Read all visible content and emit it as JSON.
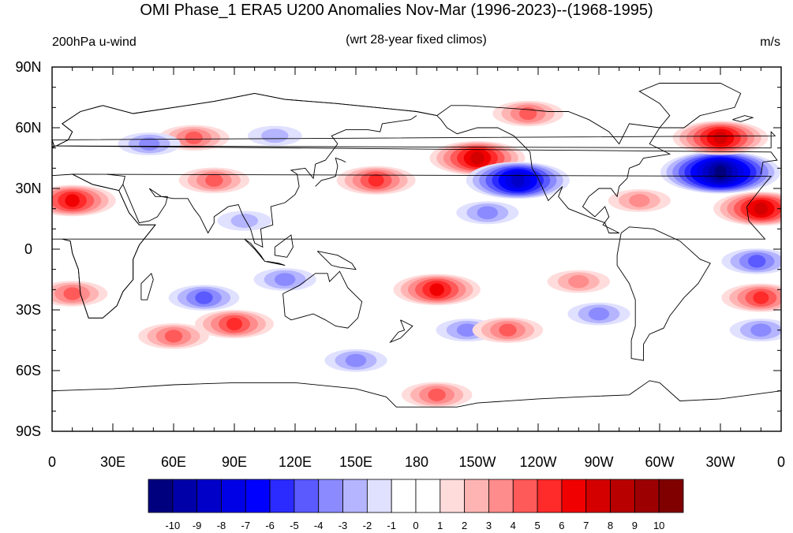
{
  "header": {
    "title": "OMI Phase_1 ERA5 U200 Anomalies Nov-Mar (1996-2023)--(1968-1995)",
    "left_label": "200hPa u-wind",
    "center_label": "(wrt 28-year fixed climos)",
    "right_label": "m/s"
  },
  "map": {
    "projection": "cylindrical equidistant",
    "lat_ticks": [
      "90N",
      "60N",
      "30N",
      "0",
      "30S",
      "60S",
      "90S"
    ],
    "lon_ticks": [
      "0",
      "30E",
      "60E",
      "90E",
      "120E",
      "150E",
      "180",
      "150W",
      "120W",
      "90W",
      "60W",
      "30W",
      "0"
    ]
  },
  "colorbar": {
    "colors": [
      "#00007f",
      "#0000a8",
      "#0000c8",
      "#0000e6",
      "#0000ff",
      "#2b2bff",
      "#5a5aff",
      "#8b8bff",
      "#b4b4ff",
      "#e0e0ff",
      "#ffffff",
      "#ffffff",
      "#ffdcdc",
      "#ffb4b4",
      "#ff8c8c",
      "#ff5a5a",
      "#ff2a2a",
      "#f00000",
      "#d40000",
      "#b80000",
      "#9c0000",
      "#800000"
    ],
    "labels": [
      "-10",
      "-9",
      "-8",
      "-7",
      "-6",
      "-5",
      "-4",
      "-3",
      "-2",
      "-1",
      "0",
      "1",
      "2",
      "3",
      "4",
      "5",
      "6",
      "7",
      "8",
      "9",
      "10"
    ]
  },
  "chart_data": {
    "type": "heatmap",
    "title": "OMI Phase_1 ERA5 U200 Anomalies Nov-Mar (1996-2023)--(1968-1995)",
    "units": "m/s",
    "levels": [
      -10,
      -9,
      -8,
      -7,
      -6,
      -5,
      -4,
      -3,
      -2,
      -1,
      0,
      1,
      2,
      3,
      4,
      5,
      6,
      7,
      8,
      9,
      10
    ],
    "features": [
      {
        "lon": 10,
        "lat": 24,
        "value": 6
      },
      {
        "lon": 10,
        "lat": -22,
        "value": 4
      },
      {
        "lon": 70,
        "lat": 55,
        "value": 4
      },
      {
        "lon": 80,
        "lat": 34,
        "value": 4
      },
      {
        "lon": 75,
        "lat": -24,
        "value": -4
      },
      {
        "lon": 90,
        "lat": -37,
        "value": 5
      },
      {
        "lon": 60,
        "lat": -43,
        "value": 4
      },
      {
        "lon": 48,
        "lat": 52,
        "value": -3
      },
      {
        "lon": 110,
        "lat": 56,
        "value": -2
      },
      {
        "lon": 95,
        "lat": 14,
        "value": -2
      },
      {
        "lon": 115,
        "lat": -15,
        "value": -3
      },
      {
        "lon": 160,
        "lat": 34,
        "value": 5
      },
      {
        "lon": 150,
        "lat": -55,
        "value": -3
      },
      {
        "lon": 190,
        "lat": -20,
        "value": 6
      },
      {
        "lon": 210,
        "lat": 45,
        "value": 7
      },
      {
        "lon": 230,
        "lat": 34,
        "value": -8
      },
      {
        "lon": 215,
        "lat": 18,
        "value": -3
      },
      {
        "lon": 205,
        "lat": -40,
        "value": -3
      },
      {
        "lon": 190,
        "lat": -72,
        "value": 4
      },
      {
        "lon": 235,
        "lat": 67,
        "value": 4
      },
      {
        "lon": 225,
        "lat": -40,
        "value": 4
      },
      {
        "lon": 260,
        "lat": -16,
        "value": 3
      },
      {
        "lon": 270,
        "lat": -32,
        "value": -3
      },
      {
        "lon": 290,
        "lat": 24,
        "value": 3
      },
      {
        "lon": 330,
        "lat": 38,
        "value": -10
      },
      {
        "lon": 330,
        "lat": 55,
        "value": 7
      },
      {
        "lon": 350,
        "lat": 20,
        "value": 7
      },
      {
        "lon": 348,
        "lat": -6,
        "value": -4
      },
      {
        "lon": 350,
        "lat": -24,
        "value": 5
      },
      {
        "lon": 350,
        "lat": -40,
        "value": -3
      }
    ]
  }
}
